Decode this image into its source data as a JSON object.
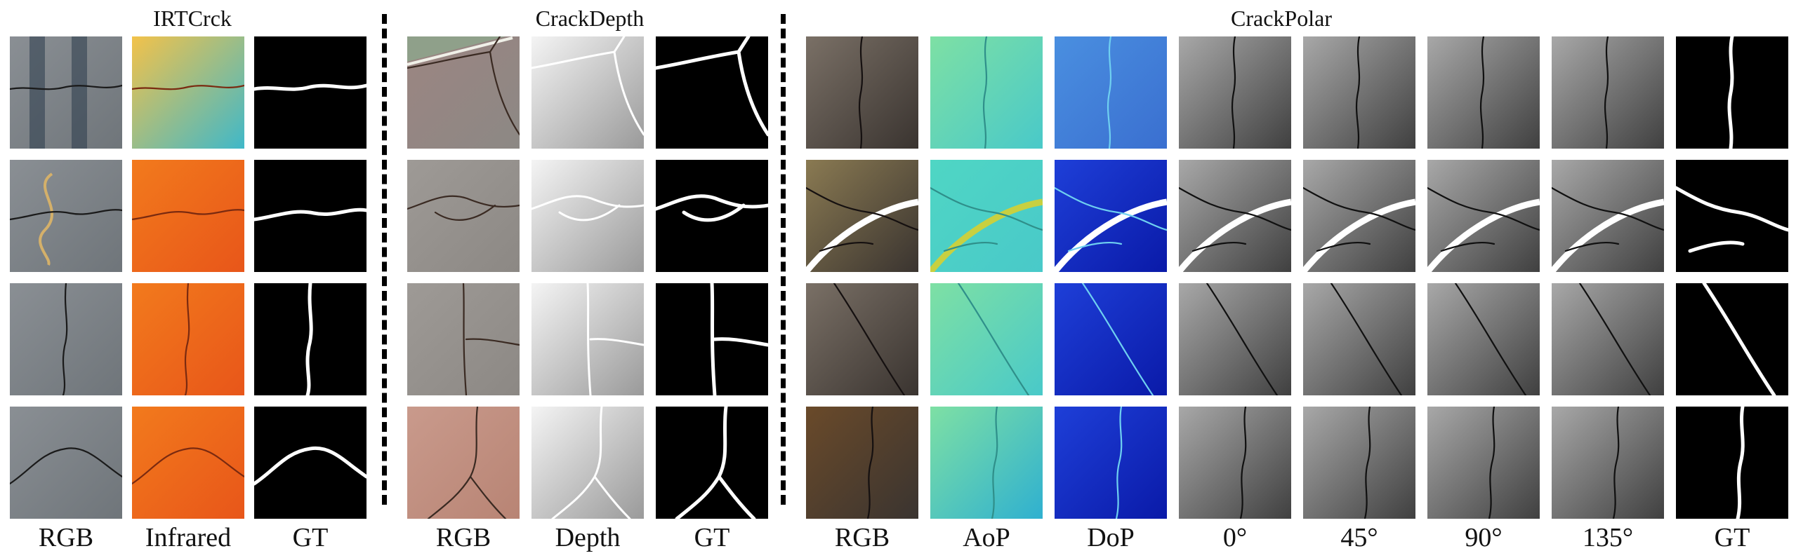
{
  "groups": [
    {
      "title": "IRTCrck",
      "columns": [
        "RGB",
        "Infrared",
        "GT"
      ]
    },
    {
      "title": "CrackDepth",
      "columns": [
        "RGB",
        "Depth",
        "GT"
      ]
    },
    {
      "title": "CrackPolar",
      "columns": [
        "RGB",
        "AoP",
        "DoP",
        "0°",
        "45°",
        "90°",
        "135°",
        "GT"
      ]
    }
  ]
}
